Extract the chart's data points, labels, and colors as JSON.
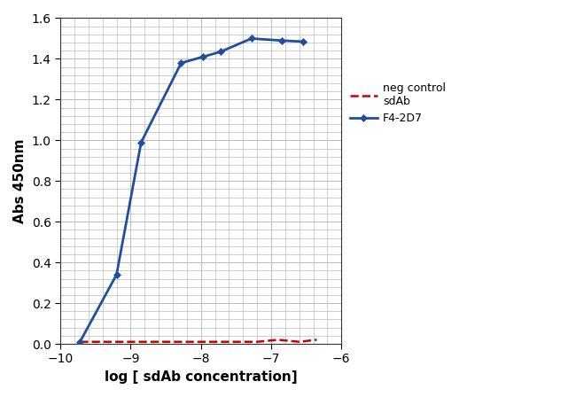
{
  "title": "",
  "xlabel": "log [ sdAb concentration]",
  "ylabel": "Abs 450nm",
  "xlim": [
    -10,
    -6
  ],
  "ylim": [
    0,
    1.6
  ],
  "xticks": [
    -10,
    -9,
    -8,
    -7,
    -6
  ],
  "yticks": [
    0,
    0.2,
    0.4,
    0.6,
    0.8,
    1.0,
    1.2,
    1.4,
    1.6
  ],
  "blue_x": [
    -9.72,
    -9.2,
    -8.85,
    -8.28,
    -7.97,
    -7.72,
    -7.28,
    -6.85,
    -6.55
  ],
  "blue_y": [
    0.01,
    0.34,
    0.99,
    1.38,
    1.41,
    1.435,
    1.5,
    1.49,
    1.485
  ],
  "red_x": [
    -9.72,
    -9.55,
    -9.3,
    -9.0,
    -8.7,
    -8.4,
    -8.1,
    -7.8,
    -7.5,
    -7.2,
    -6.9,
    -6.6,
    -6.35
  ],
  "red_y": [
    0.01,
    0.01,
    0.01,
    0.01,
    0.01,
    0.01,
    0.01,
    0.01,
    0.01,
    0.01,
    0.02,
    0.01,
    0.02
  ],
  "blue_color": "#1f4e9e",
  "red_color": "#cc0000",
  "marker_color_blue": "#1f4e9e",
  "legend_label_red": "neg control\nsdAb",
  "legend_label_blue": "F4-2D7",
  "background_color": "#ffffff",
  "grid_color": "#bbbbbb",
  "tick_label_fontsize": 10,
  "axis_label_fontsize": 11,
  "minor_grid_n": 5
}
